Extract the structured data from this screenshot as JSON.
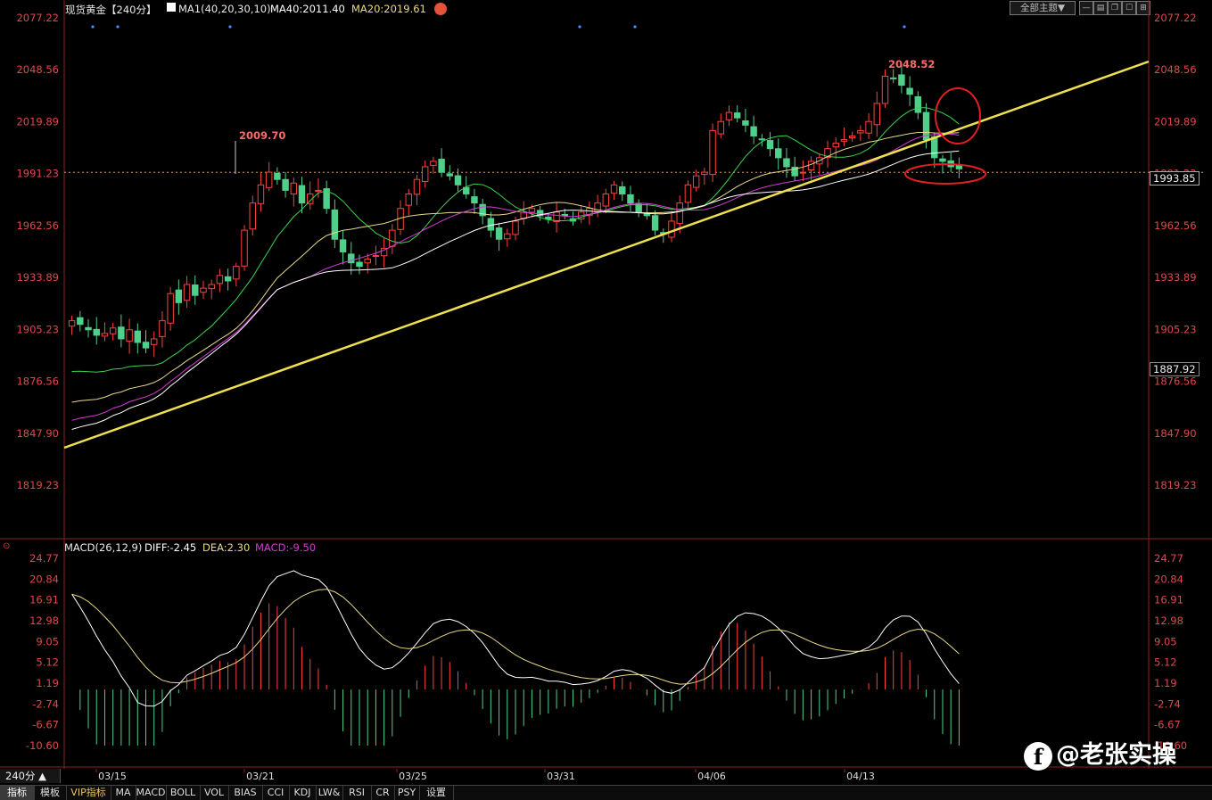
{
  "header": {
    "title": "现货黄金【240分】",
    "ma_label": "MA1(40,20,30,10)",
    "ma40": "MA40:2011.40",
    "ma20": "MA20:2019.61",
    "theme_button": "全部主题▼",
    "colors": {
      "ma40": "#ffffff",
      "ma20": "#e8d98a",
      "ma30": "#d43bd4",
      "ma10": "#3ad44a"
    }
  },
  "price_axis": {
    "labels": [
      "2077.22",
      "2048.56",
      "2019.89",
      "1991.23",
      "1962.56",
      "1933.89",
      "1905.23",
      "1876.56",
      "1847.90",
      "1819.23"
    ],
    "current_price": "1993.85",
    "low_marker": "1887.92"
  },
  "annotations": {
    "high1": "2009.70",
    "high2": "2048.52"
  },
  "x_axis": {
    "labels": [
      "03/15",
      "03/21",
      "03/25",
      "03/31",
      "04/06",
      "04/13"
    ]
  },
  "macd": {
    "header": "MACD(26,12,9)",
    "diff": "DIFF:-2.45",
    "dea": "DEA:2.30",
    "macd": "MACD:-9.50",
    "labels": [
      "24.77",
      "20.84",
      "16.91",
      "12.98",
      "9.05",
      "5.12",
      "1.19",
      "-2.74",
      "-6.67",
      "-10.60"
    ]
  },
  "period": "240分 ▲",
  "tabs": [
    "指标",
    "模板",
    "VIP指标",
    "MA",
    "MACD",
    "BOLL",
    "VOL",
    "BIAS",
    "CCI",
    "KDJ",
    "LW&",
    "RSI",
    "CR",
    "PSY",
    "设置"
  ],
  "watermark": "@老张实操",
  "chart_data": [
    {
      "type": "candlestick",
      "title": "现货黄金【240分】",
      "ylim": [
        1819.23,
        2077.22
      ],
      "x_ticks": [
        "03/15",
        "03/21",
        "03/25",
        "03/31",
        "04/06",
        "04/13"
      ],
      "series": [
        {
          "name": "MA40",
          "values": "moving average (white)"
        },
        {
          "name": "MA20",
          "values": "moving average (yellow)"
        }
      ],
      "close_approx": [
        1910,
        1908,
        1905,
        1902,
        1903,
        1906,
        1900,
        1905,
        1898,
        1895,
        1900,
        1910,
        1925,
        1920,
        1930,
        1924,
        1928,
        1930,
        1935,
        1932,
        1940,
        1960,
        1975,
        1985,
        1992,
        1988,
        1982,
        1986,
        1975,
        1980,
        1982,
        1972,
        1955,
        1948,
        1942,
        1940,
        1944,
        1946,
        1950,
        1960,
        1972,
        1980,
        1988,
        1995,
        1998,
        1992,
        1990,
        1985,
        1980,
        1975,
        1968,
        1960,
        1955,
        1958,
        1965,
        1970,
        1972,
        1968,
        1966,
        1970,
        1968,
        1965,
        1970,
        1972,
        1975,
        1980,
        1985,
        1980,
        1975,
        1970,
        1968,
        1960,
        1958,
        1965,
        1975,
        1985,
        1990,
        1992,
        2015,
        2020,
        2025,
        2022,
        2018,
        2012,
        2010,
        2005,
        2000,
        1995,
        1990,
        1992,
        1998,
        2000,
        2005,
        2008,
        2010,
        2012,
        2015,
        2020,
        2030,
        2045,
        2044,
        2040,
        2035,
        2025,
        2010,
        2000,
        1998,
        1995,
        1993.85
      ],
      "annotated_highs": [
        2009.7,
        2048.52
      ],
      "current": 1993.85
    },
    {
      "type": "line",
      "title": "MACD(26,12,9)",
      "ylim": [
        -10.6,
        24.77
      ],
      "series": [
        {
          "name": "DIFF",
          "last": -2.45
        },
        {
          "name": "DEA",
          "last": 2.3
        },
        {
          "name": "MACD",
          "last": -9.5
        }
      ]
    }
  ]
}
